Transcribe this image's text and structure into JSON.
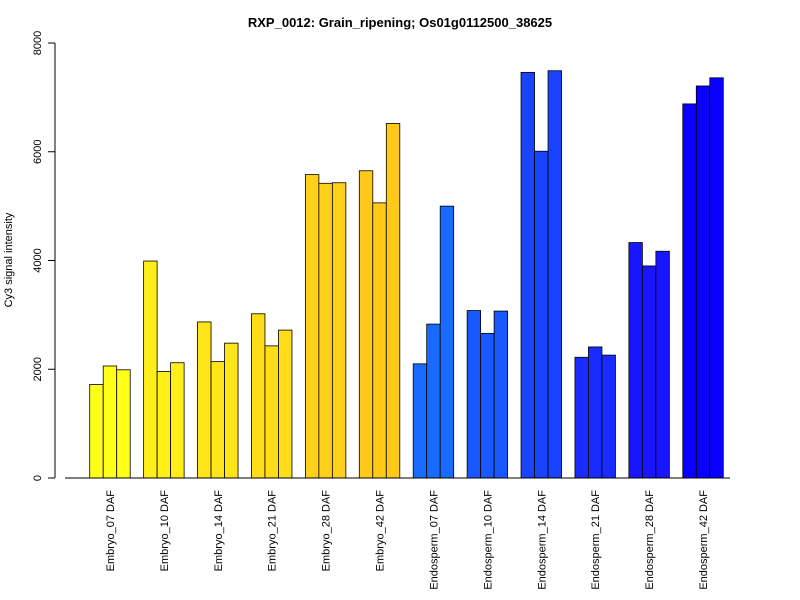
{
  "chart_data": {
    "type": "bar",
    "title": "RXP_0012: Grain_ripening; Os01g0112500_38625",
    "xlabel": "",
    "ylabel": "Cy3 signal intensity",
    "ylim": [
      0,
      8000
    ],
    "yticks": [
      0,
      2000,
      4000,
      6000,
      8000
    ],
    "grid": false,
    "legend": "none",
    "categories": [
      "Embryo_07 DAF",
      "Embryo_10 DAF",
      "Embryo_14 DAF",
      "Embryo_21 DAF",
      "Embryo_28 DAF",
      "Embryo_42 DAF",
      "Endosperm_07 DAF",
      "Endosperm_10 DAF",
      "Endosperm_14 DAF",
      "Endosperm_21 DAF",
      "Endosperm_28 DAF",
      "Endosperm_42 DAF"
    ],
    "replicates_per_category": 3,
    "values": [
      [
        1720,
        2060,
        1990
      ],
      [
        3990,
        1960,
        2120
      ],
      [
        2870,
        2140,
        2480
      ],
      [
        3020,
        2430,
        2720
      ],
      [
        5580,
        5420,
        5430
      ],
      [
        5650,
        5060,
        6520
      ],
      [
        2100,
        2830,
        5000
      ],
      [
        3080,
        2660,
        3070
      ],
      [
        7460,
        6010,
        7490
      ],
      [
        2220,
        2410,
        2260
      ],
      [
        4330,
        3900,
        4170
      ],
      [
        6880,
        7210,
        7360
      ]
    ],
    "colors": [
      "#ffff19",
      "#ffee19",
      "#ffe419",
      "#ffdd19",
      "#ffd019",
      "#ffc919",
      "#196aff",
      "#1958ff",
      "#1943ff",
      "#192cff",
      "#1916ff",
      "#0a00ff"
    ]
  }
}
